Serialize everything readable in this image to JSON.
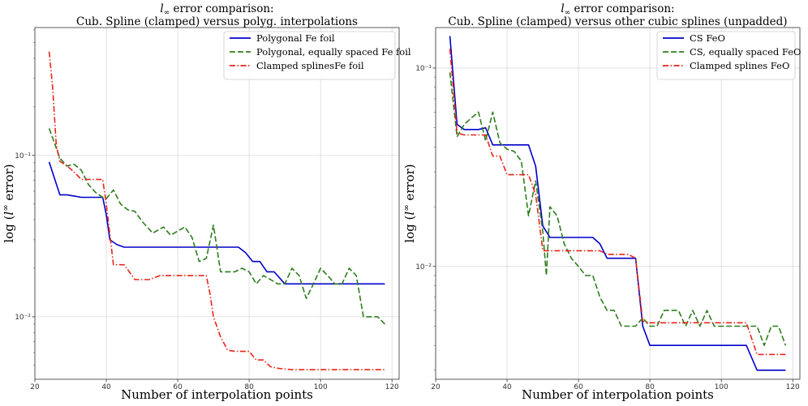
{
  "chart_data": [
    {
      "type": "line",
      "title_math": "l",
      "title_sub": "∞",
      "title_line1_rest": " error comparison:",
      "title_line2": "Cub. Spline (clamped) versus polyg. interpolations",
      "xlabel": "Number of interpolation points",
      "ylabel_pre": "log (",
      "ylabel_math": "l",
      "ylabel_sup": "∞",
      "ylabel_post": " error)",
      "xlim": [
        20,
        122
      ],
      "ylim": [
        0.0041,
        0.62
      ],
      "yscale": "log",
      "x_ticks": [
        20,
        40,
        60,
        80,
        100,
        120
      ],
      "x_tick_labels": [
        "20",
        "40",
        "60",
        "80",
        "100",
        "120"
      ],
      "y_ticks": [
        0.01,
        0.1
      ],
      "y_tick_labels": [
        "10⁻²",
        "10⁻¹"
      ],
      "grid": true,
      "legend_position": "top-right",
      "series": [
        {
          "name": "Polygonal Fe foil",
          "color": "#0000cc",
          "style": "solid",
          "x": [
            24,
            27,
            29,
            31,
            33,
            35,
            37,
            39,
            40,
            41,
            43,
            45,
            48,
            50,
            55,
            60,
            65,
            70,
            75,
            77,
            79,
            81,
            83,
            85,
            87,
            90,
            95,
            100,
            105,
            110,
            115,
            118
          ],
          "y": [
            0.091,
            0.057,
            0.057,
            0.056,
            0.055,
            0.055,
            0.055,
            0.055,
            0.043,
            0.03,
            0.028,
            0.027,
            0.027,
            0.027,
            0.027,
            0.027,
            0.027,
            0.027,
            0.027,
            0.027,
            0.025,
            0.022,
            0.022,
            0.019,
            0.019,
            0.016,
            0.016,
            0.016,
            0.016,
            0.016,
            0.016,
            0.016
          ]
        },
        {
          "name": "Polygonal, equally spaced Fe foil",
          "color": "#2e7d1e",
          "style": "dashed",
          "x": [
            24,
            25,
            27,
            29,
            31,
            33,
            35,
            37,
            39,
            40,
            42,
            44,
            46,
            48,
            50,
            53,
            56,
            58,
            60,
            62,
            64,
            66,
            68,
            70,
            72,
            74,
            76,
            78,
            80,
            82,
            84,
            86,
            88,
            90,
            92,
            94,
            96,
            98,
            100,
            102,
            104,
            106,
            108,
            110,
            112,
            114,
            116,
            118
          ],
          "y": [
            0.147,
            0.128,
            0.096,
            0.086,
            0.088,
            0.081,
            0.066,
            0.059,
            0.055,
            0.054,
            0.061,
            0.05,
            0.046,
            0.045,
            0.039,
            0.033,
            0.036,
            0.032,
            0.034,
            0.036,
            0.031,
            0.022,
            0.023,
            0.037,
            0.019,
            0.019,
            0.019,
            0.02,
            0.019,
            0.016,
            0.018,
            0.017,
            0.016,
            0.016,
            0.02,
            0.018,
            0.013,
            0.016,
            0.02,
            0.018,
            0.016,
            0.016,
            0.02,
            0.018,
            0.01,
            0.01,
            0.01,
            0.009
          ]
        },
        {
          "name": "Clamped splinesFe foil",
          "color": "#e8251a",
          "style": "dashdot",
          "x": [
            24,
            25,
            26,
            27,
            29,
            31,
            33,
            35,
            37,
            39,
            40,
            42,
            45,
            48,
            52,
            55,
            58,
            60,
            63,
            66,
            68,
            69,
            70,
            72,
            74,
            76,
            78,
            80,
            82,
            84,
            86,
            88,
            92,
            96,
            100,
            104,
            108,
            112,
            116,
            118
          ],
          "y": [
            0.44,
            0.26,
            0.115,
            0.092,
            0.086,
            0.079,
            0.071,
            0.071,
            0.071,
            0.071,
            0.05,
            0.021,
            0.021,
            0.017,
            0.017,
            0.018,
            0.018,
            0.018,
            0.018,
            0.018,
            0.018,
            0.014,
            0.01,
            0.0075,
            0.0062,
            0.0061,
            0.0061,
            0.0061,
            0.0054,
            0.0054,
            0.0049,
            0.0048,
            0.0047,
            0.0047,
            0.0047,
            0.0047,
            0.0047,
            0.0047,
            0.0047,
            0.0047
          ]
        }
      ]
    },
    {
      "type": "line",
      "title_math": "l",
      "title_sub": "∞",
      "title_line1_rest": " error comparison:",
      "title_line2": "Cub. Spline (clamped) versus other cubic splines (unpadded)",
      "xlabel": "Number of interpolation points",
      "ylabel_pre": "log (",
      "ylabel_math": "l",
      "ylabel_sup": "∞",
      "ylabel_post": " error)",
      "xlim": [
        20,
        122
      ],
      "ylim": [
        0.0027,
        0.16
      ],
      "yscale": "log",
      "x_ticks": [
        20,
        40,
        60,
        80,
        100,
        120
      ],
      "x_tick_labels": [
        "20",
        "40",
        "60",
        "80",
        "100",
        "120"
      ],
      "y_ticks": [
        0.01,
        0.1
      ],
      "y_tick_labels": [
        "10⁻²",
        "10⁻¹"
      ],
      "grid": true,
      "legend_position": "top-right",
      "series": [
        {
          "name": "CS FeO",
          "color": "#0000cc",
          "style": "solid",
          "x": [
            24,
            26,
            28,
            30,
            32,
            34,
            36,
            38,
            40,
            42,
            44,
            46,
            48,
            50,
            52,
            54,
            56,
            58,
            60,
            62,
            64,
            66,
            68,
            70,
            72,
            74,
            76,
            78,
            80,
            85,
            90,
            95,
            100,
            105,
            107,
            110,
            115,
            118
          ],
          "y": [
            0.145,
            0.052,
            0.049,
            0.049,
            0.049,
            0.05,
            0.041,
            0.041,
            0.041,
            0.041,
            0.041,
            0.041,
            0.032,
            0.016,
            0.014,
            0.014,
            0.014,
            0.014,
            0.014,
            0.014,
            0.014,
            0.013,
            0.011,
            0.011,
            0.011,
            0.011,
            0.011,
            0.005,
            0.004,
            0.004,
            0.004,
            0.004,
            0.004,
            0.004,
            0.004,
            0.003,
            0.003,
            0.003
          ]
        },
        {
          "name": "CS, equally spaced FeO",
          "color": "#2e7d1e",
          "style": "dashed",
          "x": [
            24,
            26,
            28,
            30,
            32,
            34,
            36,
            38,
            40,
            42,
            44,
            46,
            48,
            50,
            51,
            52,
            54,
            56,
            58,
            60,
            62,
            64,
            66,
            68,
            70,
            72,
            74,
            76,
            78,
            80,
            82,
            84,
            86,
            88,
            90,
            92,
            94,
            96,
            98,
            100,
            102,
            104,
            106,
            108,
            110,
            112,
            114,
            116,
            118
          ],
          "y": [
            0.095,
            0.045,
            0.052,
            0.056,
            0.06,
            0.043,
            0.06,
            0.042,
            0.039,
            0.038,
            0.034,
            0.018,
            0.027,
            0.015,
            0.009,
            0.02,
            0.018,
            0.013,
            0.011,
            0.01,
            0.009,
            0.009,
            0.007,
            0.006,
            0.006,
            0.005,
            0.005,
            0.005,
            0.0055,
            0.005,
            0.005,
            0.006,
            0.006,
            0.006,
            0.005,
            0.006,
            0.005,
            0.006,
            0.005,
            0.005,
            0.005,
            0.005,
            0.005,
            0.005,
            0.005,
            0.004,
            0.005,
            0.005,
            0.004
          ]
        },
        {
          "name": "Clamped splines FeO",
          "color": "#e8251a",
          "style": "dashdot",
          "x": [
            24,
            26,
            28,
            30,
            32,
            34,
            36,
            38,
            40,
            42,
            44,
            46,
            48,
            50,
            52,
            54,
            56,
            58,
            60,
            62,
            64,
            66,
            68,
            70,
            72,
            74,
            76,
            78,
            80,
            84,
            88,
            92,
            96,
            100,
            104,
            107,
            110,
            114,
            118
          ],
          "y": [
            0.125,
            0.047,
            0.046,
            0.046,
            0.046,
            0.046,
            0.036,
            0.036,
            0.029,
            0.029,
            0.029,
            0.029,
            0.023,
            0.012,
            0.012,
            0.012,
            0.012,
            0.012,
            0.012,
            0.012,
            0.012,
            0.012,
            0.0115,
            0.0115,
            0.0115,
            0.0115,
            0.011,
            0.0053,
            0.0052,
            0.0052,
            0.0052,
            0.0052,
            0.0052,
            0.0052,
            0.0052,
            0.0052,
            0.0036,
            0.0036,
            0.0036
          ]
        }
      ]
    }
  ]
}
